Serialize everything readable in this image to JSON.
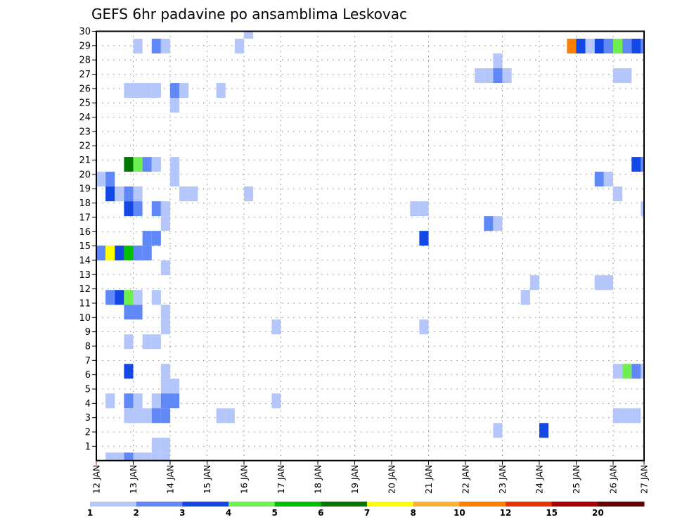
{
  "chart_data": {
    "type": "heatmap",
    "title": "GEFS 6hr padavine po ansamblima Leskovac",
    "xlabel": "",
    "ylabel": "",
    "x_unit": "6-hour step from 12 JAN 00h",
    "x_tick_labels": [
      "12 JAN",
      "13 JAN",
      "14 JAN",
      "15 JAN",
      "16 JAN",
      "17 JAN",
      "18 JAN",
      "19 JAN",
      "20 JAN",
      "21 JAN",
      "22 JAN",
      "23 JAN",
      "24 JAN",
      "25 JAN",
      "26 JAN",
      "27 JAN"
    ],
    "y_tick_labels": [
      "1",
      "2",
      "3",
      "4",
      "5",
      "6",
      "7",
      "8",
      "9",
      "10",
      "11",
      "12",
      "13",
      "14",
      "15",
      "16",
      "17",
      "18",
      "19",
      "20",
      "21",
      "22",
      "23",
      "24",
      "25",
      "26",
      "27",
      "28",
      "29",
      "30"
    ],
    "ylim": [
      0,
      30
    ],
    "grid": true,
    "legend": {
      "placement": "bottom",
      "labels": [
        "1",
        "2",
        "3",
        "4",
        "5",
        "6",
        "7",
        "8",
        "10",
        "12",
        "15",
        "20"
      ],
      "colors": [
        "#b4c6fa",
        "#6089f7",
        "#1348e6",
        "#6ef050",
        "#00c000",
        "#007800",
        "#ffff00",
        "#ffb030",
        "#ff7d00",
        "#e83200",
        "#a80000",
        "#640000"
      ]
    },
    "cells_format": "[member, step, class]  class = index into legend colors (bin lower bound = legend label)",
    "cells": [
      [
        30,
        16,
        0
      ],
      [
        29,
        4,
        0
      ],
      [
        29,
        6,
        1
      ],
      [
        29,
        7,
        0
      ],
      [
        29,
        15,
        0
      ],
      [
        29,
        51,
        8
      ],
      [
        29,
        52,
        2
      ],
      [
        29,
        53,
        0
      ],
      [
        29,
        54,
        2
      ],
      [
        29,
        55,
        1
      ],
      [
        29,
        56,
        3
      ],
      [
        29,
        57,
        1
      ],
      [
        29,
        58,
        2
      ],
      [
        29,
        59,
        1
      ],
      [
        28,
        43,
        0
      ],
      [
        27,
        41,
        0
      ],
      [
        27,
        42,
        0
      ],
      [
        27,
        43,
        1
      ],
      [
        27,
        44,
        0
      ],
      [
        27,
        56,
        0
      ],
      [
        27,
        57,
        0
      ],
      [
        26,
        3,
        0
      ],
      [
        26,
        4,
        0
      ],
      [
        26,
        5,
        0
      ],
      [
        26,
        6,
        0
      ],
      [
        26,
        8,
        1
      ],
      [
        26,
        9,
        0
      ],
      [
        26,
        13,
        0
      ],
      [
        25,
        8,
        0
      ],
      [
        21,
        3,
        5
      ],
      [
        21,
        4,
        3
      ],
      [
        21,
        5,
        1
      ],
      [
        21,
        6,
        0
      ],
      [
        21,
        8,
        0
      ],
      [
        21,
        58,
        2
      ],
      [
        21,
        59,
        1
      ],
      [
        20,
        0,
        0
      ],
      [
        20,
        1,
        1
      ],
      [
        20,
        8,
        0
      ],
      [
        20,
        54,
        1
      ],
      [
        20,
        55,
        0
      ],
      [
        19,
        1,
        2
      ],
      [
        19,
        2,
        0
      ],
      [
        19,
        3,
        1
      ],
      [
        19,
        4,
        0
      ],
      [
        19,
        9,
        0
      ],
      [
        19,
        10,
        0
      ],
      [
        19,
        16,
        0
      ],
      [
        19,
        56,
        0
      ],
      [
        18,
        3,
        2
      ],
      [
        18,
        4,
        1
      ],
      [
        18,
        6,
        1
      ],
      [
        18,
        7,
        0
      ],
      [
        18,
        34,
        0
      ],
      [
        18,
        35,
        0
      ],
      [
        18,
        59,
        0
      ],
      [
        17,
        7,
        0
      ],
      [
        17,
        42,
        1
      ],
      [
        17,
        43,
        0
      ],
      [
        16,
        5,
        1
      ],
      [
        16,
        6,
        1
      ],
      [
        16,
        35,
        2
      ],
      [
        15,
        0,
        1
      ],
      [
        15,
        1,
        6
      ],
      [
        15,
        2,
        2
      ],
      [
        15,
        3,
        4
      ],
      [
        15,
        4,
        1
      ],
      [
        15,
        5,
        1
      ],
      [
        14,
        7,
        0
      ],
      [
        13,
        47,
        0
      ],
      [
        13,
        54,
        0
      ],
      [
        13,
        55,
        0
      ],
      [
        12,
        1,
        1
      ],
      [
        12,
        2,
        2
      ],
      [
        12,
        3,
        3
      ],
      [
        12,
        4,
        0
      ],
      [
        12,
        6,
        0
      ],
      [
        12,
        46,
        0
      ],
      [
        11,
        3,
        1
      ],
      [
        11,
        4,
        1
      ],
      [
        11,
        7,
        0
      ],
      [
        10,
        7,
        0
      ],
      [
        10,
        19,
        0
      ],
      [
        10,
        35,
        0
      ],
      [
        9,
        3,
        0
      ],
      [
        9,
        5,
        0
      ],
      [
        9,
        6,
        0
      ],
      [
        7,
        3,
        2
      ],
      [
        7,
        7,
        0
      ],
      [
        7,
        56,
        0
      ],
      [
        7,
        57,
        3
      ],
      [
        7,
        58,
        1
      ],
      [
        7,
        59,
        0
      ],
      [
        6,
        7,
        0
      ],
      [
        6,
        8,
        0
      ],
      [
        5,
        1,
        0
      ],
      [
        5,
        3,
        1
      ],
      [
        5,
        4,
        0
      ],
      [
        5,
        6,
        0
      ],
      [
        5,
        7,
        1
      ],
      [
        5,
        8,
        1
      ],
      [
        5,
        19,
        0
      ],
      [
        4,
        3,
        0
      ],
      [
        4,
        4,
        0
      ],
      [
        4,
        5,
        0
      ],
      [
        4,
        6,
        1
      ],
      [
        4,
        7,
        1
      ],
      [
        4,
        13,
        0
      ],
      [
        4,
        14,
        0
      ],
      [
        4,
        56,
        0
      ],
      [
        4,
        57,
        0
      ],
      [
        4,
        58,
        0
      ],
      [
        3,
        43,
        0
      ],
      [
        3,
        48,
        2
      ],
      [
        2,
        6,
        0
      ],
      [
        2,
        7,
        0
      ],
      [
        1,
        1,
        0
      ],
      [
        1,
        2,
        0
      ],
      [
        1,
        3,
        1
      ],
      [
        1,
        4,
        0
      ],
      [
        1,
        5,
        0
      ],
      [
        1,
        6,
        0
      ],
      [
        1,
        7,
        0
      ]
    ]
  }
}
